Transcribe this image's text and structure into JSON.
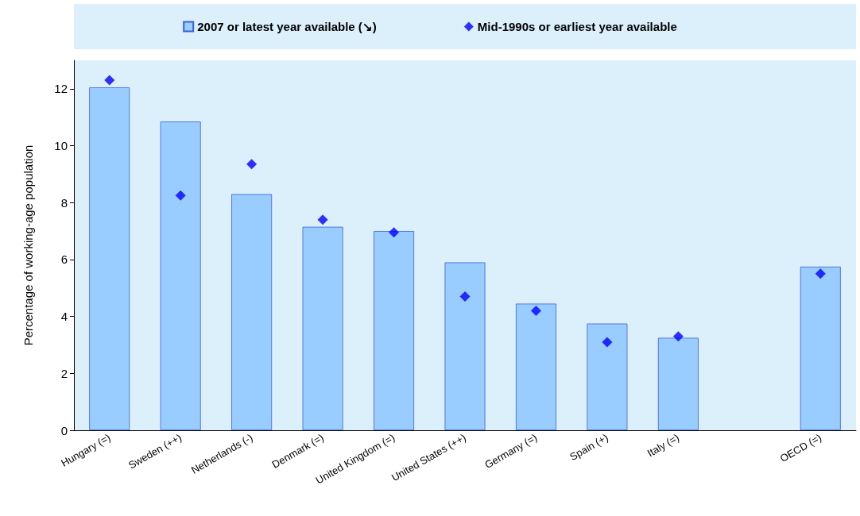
{
  "chart_data": {
    "type": "bar",
    "ylabel": "Percentage of working-age population",
    "categories": [
      "Hungary (=)",
      "Sweden (++)",
      "Netherlands (-)",
      "Denmark (=)",
      "United Kingdom (=)",
      "United States (++)",
      "Germany (=)",
      "Spain (+)",
      "Italy (=)",
      null,
      "OECD (=)"
    ],
    "series": [
      {
        "name": "2007 or latest year available (↘)",
        "color": "#99ccff",
        "values": [
          12.05,
          10.85,
          8.3,
          7.15,
          7.0,
          5.9,
          4.45,
          3.75,
          3.25,
          null,
          5.75
        ]
      },
      {
        "name": "Mid-1990s or earliest year available",
        "type": "scatter",
        "marker": "diamond",
        "color": "#0000ff",
        "values": [
          12.3,
          8.25,
          9.35,
          7.4,
          6.95,
          4.7,
          4.2,
          3.1,
          3.3,
          null,
          5.5
        ]
      }
    ],
    "ylim": [
      0,
      13
    ],
    "yticks": [
      0,
      2,
      4,
      6,
      8,
      10,
      12
    ],
    "grid": false,
    "legend": "top"
  }
}
